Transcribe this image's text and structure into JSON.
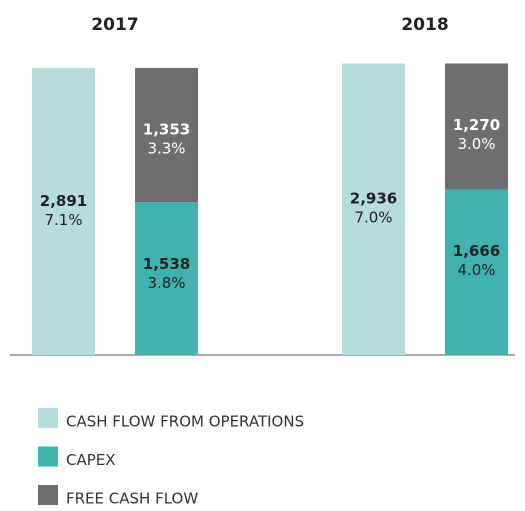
{
  "chart_data": {
    "type": "stacked_group_bar",
    "categories": [
      "2017",
      "2018"
    ],
    "series": [
      {
        "name": "CASH FLOW FROM OPERATIONS",
        "color": "#b6dcdb",
        "label_color": "#222222",
        "stack": "a",
        "values": [
          2891,
          2936
        ],
        "value_labels": [
          "2,891",
          "2,936"
        ],
        "share_labels": [
          "7.1%",
          "7.0%"
        ]
      },
      {
        "name": "CAPEX",
        "color": "#40b3af",
        "label_color": "#222222",
        "stack": "b",
        "values": [
          1538,
          1666
        ],
        "value_labels": [
          "1,538",
          "1,666"
        ],
        "share_labels": [
          "3.8%",
          "4.0%"
        ]
      },
      {
        "name": "FREE CASH FLOW",
        "color": "#6d6e70",
        "label_color": "#ffffff",
        "stack": "b",
        "values": [
          1353,
          1270
        ],
        "value_labels": [
          "1,353",
          "1,270"
        ],
        "share_labels": [
          "3.3%",
          "3.0%"
        ]
      }
    ]
  }
}
